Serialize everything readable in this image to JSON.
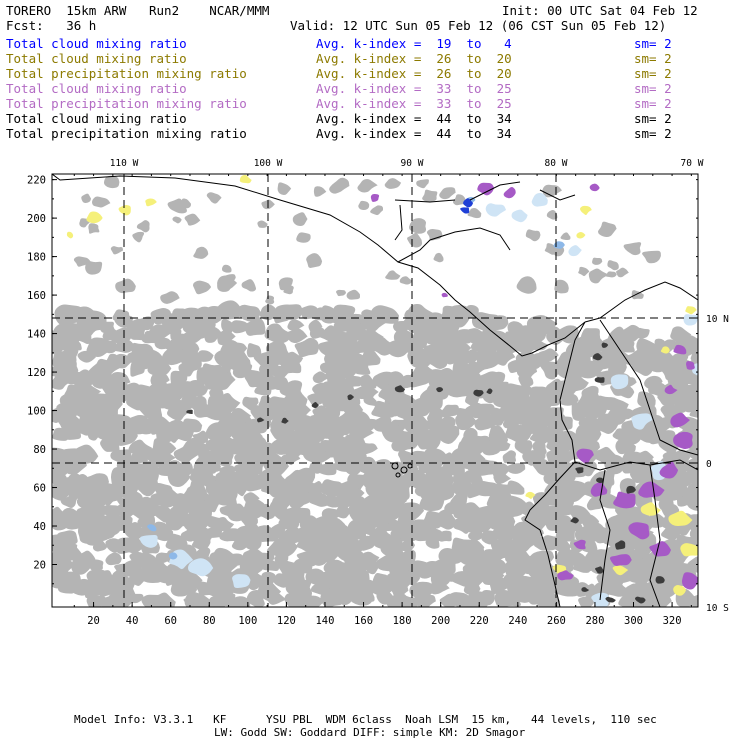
{
  "header": {
    "model": "TORERO  15km ARW   Run2    NCAR/MMM",
    "init": "Init: 00 UTC Sat 04 Feb 12",
    "fcst": "Fcst:   36 h",
    "valid": "Valid: 12 UTC Sun 05 Feb 12 (06 CST Sun 05 Feb 12)"
  },
  "legend": [
    {
      "field": "Total cloud mixing ratio",
      "kindex": "Avg. k-index =  19  to   4",
      "sm": "sm= 2",
      "color": "#0000ff"
    },
    {
      "field": "Total cloud mixing ratio",
      "kindex": "Avg. k-index =  26  to  20",
      "sm": "sm= 2",
      "color": "#8c7a00"
    },
    {
      "field": "Total precipitation mixing ratio",
      "kindex": "Avg. k-index =  26  to  20",
      "sm": "sm= 2",
      "color": "#8c7a00"
    },
    {
      "field": "Total cloud mixing ratio",
      "kindex": "Avg. k-index =  33  to  25",
      "sm": "sm= 2",
      "color": "#b36bc4"
    },
    {
      "field": "Total precipitation mixing ratio",
      "kindex": "Avg. k-index =  33  to  25",
      "sm": "sm= 2",
      "color": "#b36bc4"
    },
    {
      "field": "Total cloud mixing ratio",
      "kindex": "Avg. k-index =  44  to  34",
      "sm": "sm= 2",
      "color": "#000000"
    },
    {
      "field": "Total precipitation mixing ratio",
      "kindex": "Avg. k-index =  44  to  34",
      "sm": "sm= 2",
      "color": "#000000"
    }
  ],
  "map": {
    "x_ticks": [
      "20",
      "40",
      "60",
      "80",
      "100",
      "120",
      "140",
      "160",
      "180",
      "200",
      "220",
      "240",
      "260",
      "280",
      "300",
      "320"
    ],
    "y_ticks": [
      "20",
      "40",
      "60",
      "80",
      "100",
      "120",
      "140",
      "160",
      "180",
      "200",
      "220"
    ],
    "lon_labels": [
      "110 W",
      "100 W",
      "90 W",
      "80 W",
      "70 W"
    ],
    "lat_labels": [
      "10 N",
      "0",
      "10 S"
    ],
    "colors": {
      "gray_cloud": "#b4b4b4",
      "dark_cloud": "#3c3c3c",
      "light_blue": "#cfe4f5",
      "mid_blue": "#8db8e8",
      "blue": "#1f3fd6",
      "yellow": "#f5f07a",
      "purple": "#a65ac6",
      "coast": "#000000",
      "grid": "#000000"
    }
  },
  "footer": {
    "line1": "Model Info: V3.3.1   KF      YSU PBL  WDM 6class  Noah LSM  15 km,   44 levels,  110 sec",
    "line2": "LW: Godd SW: Goddard DIFF: simple KM: 2D Smagor"
  }
}
